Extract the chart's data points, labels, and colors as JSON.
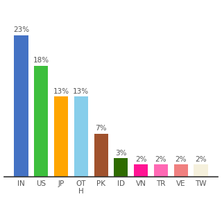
{
  "categories": [
    "IN",
    "US",
    "JP",
    "OT\nH",
    "PK",
    "ID",
    "VN",
    "TR",
    "VE",
    "TW"
  ],
  "values": [
    23,
    18,
    13,
    13,
    7,
    3,
    2,
    2,
    2,
    2
  ],
  "bar_colors": [
    "#4472C4",
    "#3DBF3D",
    "#FFA500",
    "#87CEEB",
    "#A0522D",
    "#2E6B00",
    "#FF1493",
    "#FF69B4",
    "#F08080",
    "#F5F0DC"
  ],
  "ylim": [
    0,
    27
  ],
  "background_color": "#ffffff",
  "label_fontsize": 7.5,
  "tick_fontsize": 7.5,
  "bar_width": 0.7
}
